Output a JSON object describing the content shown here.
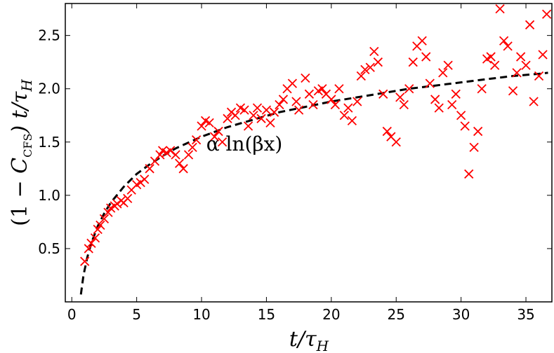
{
  "chart_data": {
    "type": "scatter",
    "title": "",
    "xlabel": "t/τ_H",
    "ylabel": "(1 − C_CFS) t/τ_H",
    "xlabel_parts": {
      "main": "t/τ",
      "sub": "H"
    },
    "ylabel_parts": {
      "prefix": "(1 − ",
      "c": "C",
      "c_sub": "CFS",
      "suffix": ") t/τ",
      "suffix_sub": "H"
    },
    "xlim": [
      -0.5,
      37
    ],
    "ylim": [
      0,
      2.8
    ],
    "xticks": [
      0,
      5,
      10,
      15,
      20,
      25,
      30,
      35
    ],
    "yticks": [
      0.5,
      1.0,
      1.5,
      2.0,
      2.5
    ],
    "xtick_labels": [
      "0",
      "5",
      "10",
      "15",
      "20",
      "25",
      "30",
      "35"
    ],
    "ytick_labels": [
      "0.5",
      "1.0",
      "1.5",
      "2.0",
      "2.5"
    ],
    "grid": false,
    "series": [
      {
        "name": "data",
        "marker": "x",
        "color": "#ff0000",
        "x": [
          1.0,
          1.3,
          1.5,
          1.8,
          2.0,
          2.2,
          2.5,
          2.8,
          3.0,
          3.3,
          3.5,
          3.8,
          4.0,
          4.3,
          4.6,
          5.0,
          5.3,
          5.6,
          6.0,
          6.4,
          6.8,
          7.0,
          7.3,
          7.6,
          8.0,
          8.3,
          8.6,
          9.0,
          9.3,
          9.6,
          10.0,
          10.3,
          10.6,
          11.0,
          11.3,
          11.6,
          12.0,
          12.3,
          12.6,
          13.0,
          13.3,
          13.6,
          14.0,
          14.3,
          14.6,
          15.0,
          15.3,
          15.6,
          16.0,
          16.3,
          16.6,
          17.0,
          17.3,
          17.5,
          18.0,
          18.3,
          18.6,
          19.0,
          19.3,
          19.6,
          20.0,
          20.3,
          20.6,
          21.0,
          21.3,
          21.6,
          22.0,
          22.3,
          22.6,
          23.0,
          23.3,
          23.6,
          24.0,
          24.3,
          24.6,
          25.0,
          25.3,
          25.6,
          26.0,
          26.3,
          26.6,
          27.0,
          27.3,
          27.6,
          28.0,
          28.3,
          28.6,
          29.0,
          29.3,
          29.6,
          30.0,
          30.3,
          30.6,
          31.0,
          31.3,
          31.6,
          32.0,
          32.3,
          32.6,
          33.0,
          33.3,
          33.6,
          34.0,
          34.3,
          34.6,
          35.0,
          35.3,
          35.6,
          36.0,
          36.3,
          36.6
        ],
        "y": [
          0.38,
          0.5,
          0.55,
          0.6,
          0.68,
          0.72,
          0.78,
          0.84,
          0.88,
          0.9,
          0.92,
          0.95,
          0.93,
          0.97,
          1.05,
          1.1,
          1.12,
          1.15,
          1.25,
          1.32,
          1.38,
          1.42,
          1.4,
          1.42,
          1.38,
          1.3,
          1.25,
          1.38,
          1.45,
          1.52,
          1.65,
          1.7,
          1.68,
          1.55,
          1.6,
          1.5,
          1.72,
          1.78,
          1.75,
          1.82,
          1.8,
          1.65,
          1.75,
          1.82,
          1.72,
          1.8,
          1.68,
          1.78,
          1.85,
          1.9,
          2.0,
          2.05,
          1.88,
          1.8,
          2.1,
          1.95,
          1.85,
          1.98,
          2.0,
          1.95,
          1.9,
          1.85,
          2.0,
          1.75,
          1.82,
          1.7,
          1.88,
          2.12,
          2.18,
          2.2,
          2.35,
          2.25,
          1.95,
          1.6,
          1.55,
          1.5,
          1.92,
          1.85,
          2.0,
          2.25,
          2.4,
          2.45,
          2.3,
          2.05,
          1.9,
          1.82,
          2.15,
          2.22,
          1.85,
          1.95,
          1.75,
          1.65,
          1.2,
          1.45,
          1.6,
          2.0,
          2.28,
          2.3,
          2.22,
          2.75,
          2.45,
          2.4,
          1.98,
          2.15,
          2.3,
          2.22,
          2.6,
          1.88,
          2.12,
          2.32,
          2.7
        ]
      },
      {
        "name": "fit",
        "style": "dashed",
        "color": "#000000",
        "x": [
          0.7,
          0.9,
          1.2,
          1.5,
          2.0,
          2.5,
          3.0,
          4.0,
          5.0,
          6.0,
          7.0,
          8.0,
          10.0,
          12.0,
          14.0,
          16.0,
          18.0,
          20.0,
          22.0,
          24.0,
          26.0,
          28.0,
          30.0,
          32.0,
          34.0,
          36.0,
          36.7
        ],
        "y": [
          0.07,
          0.25,
          0.42,
          0.55,
          0.71,
          0.83,
          0.93,
          1.08,
          1.2,
          1.29,
          1.37,
          1.44,
          1.55,
          1.64,
          1.71,
          1.78,
          1.83,
          1.88,
          1.92,
          1.96,
          2.0,
          2.03,
          2.06,
          2.09,
          2.12,
          2.14,
          2.15
        ]
      }
    ],
    "annotations": [
      {
        "text": "α ln(βx)",
        "x": 13.3,
        "y": 1.42
      }
    ]
  }
}
